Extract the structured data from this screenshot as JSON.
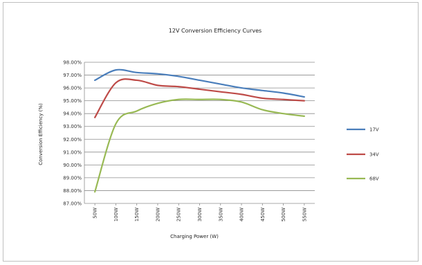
{
  "chart_data": {
    "type": "line",
    "title": "12V Conversion Efficiency Curves",
    "xlabel": "Charging Power (W)",
    "ylabel": "Conversion Efficiency (%)",
    "categories": [
      "50W",
      "100W",
      "150W",
      "200W",
      "250W",
      "300W",
      "350W",
      "400W",
      "450W",
      "500W",
      "550W"
    ],
    "y_ticks": [
      "87.00%",
      "88.00%",
      "89.00%",
      "90.00%",
      "91.00%",
      "92.00%",
      "93.00%",
      "94.00%",
      "95.00%",
      "96.00%",
      "97.00%",
      "98.00%"
    ],
    "ylim": [
      87.0,
      98.0
    ],
    "grid": true,
    "legend_position": "right",
    "series": [
      {
        "name": "17V",
        "color": "#4a7ebb",
        "values": [
          96.6,
          97.4,
          97.2,
          97.1,
          96.9,
          96.6,
          96.3,
          96.0,
          95.8,
          95.6,
          95.3
        ]
      },
      {
        "name": "34V",
        "color": "#be4b48",
        "values": [
          93.7,
          96.4,
          96.6,
          96.2,
          96.1,
          95.9,
          95.7,
          95.5,
          95.2,
          95.1,
          95.0
        ]
      },
      {
        "name": "68V",
        "color": "#98b954",
        "values": [
          87.9,
          93.2,
          94.2,
          94.8,
          95.1,
          95.1,
          95.1,
          94.9,
          94.3,
          94.0,
          93.8
        ]
      }
    ]
  }
}
